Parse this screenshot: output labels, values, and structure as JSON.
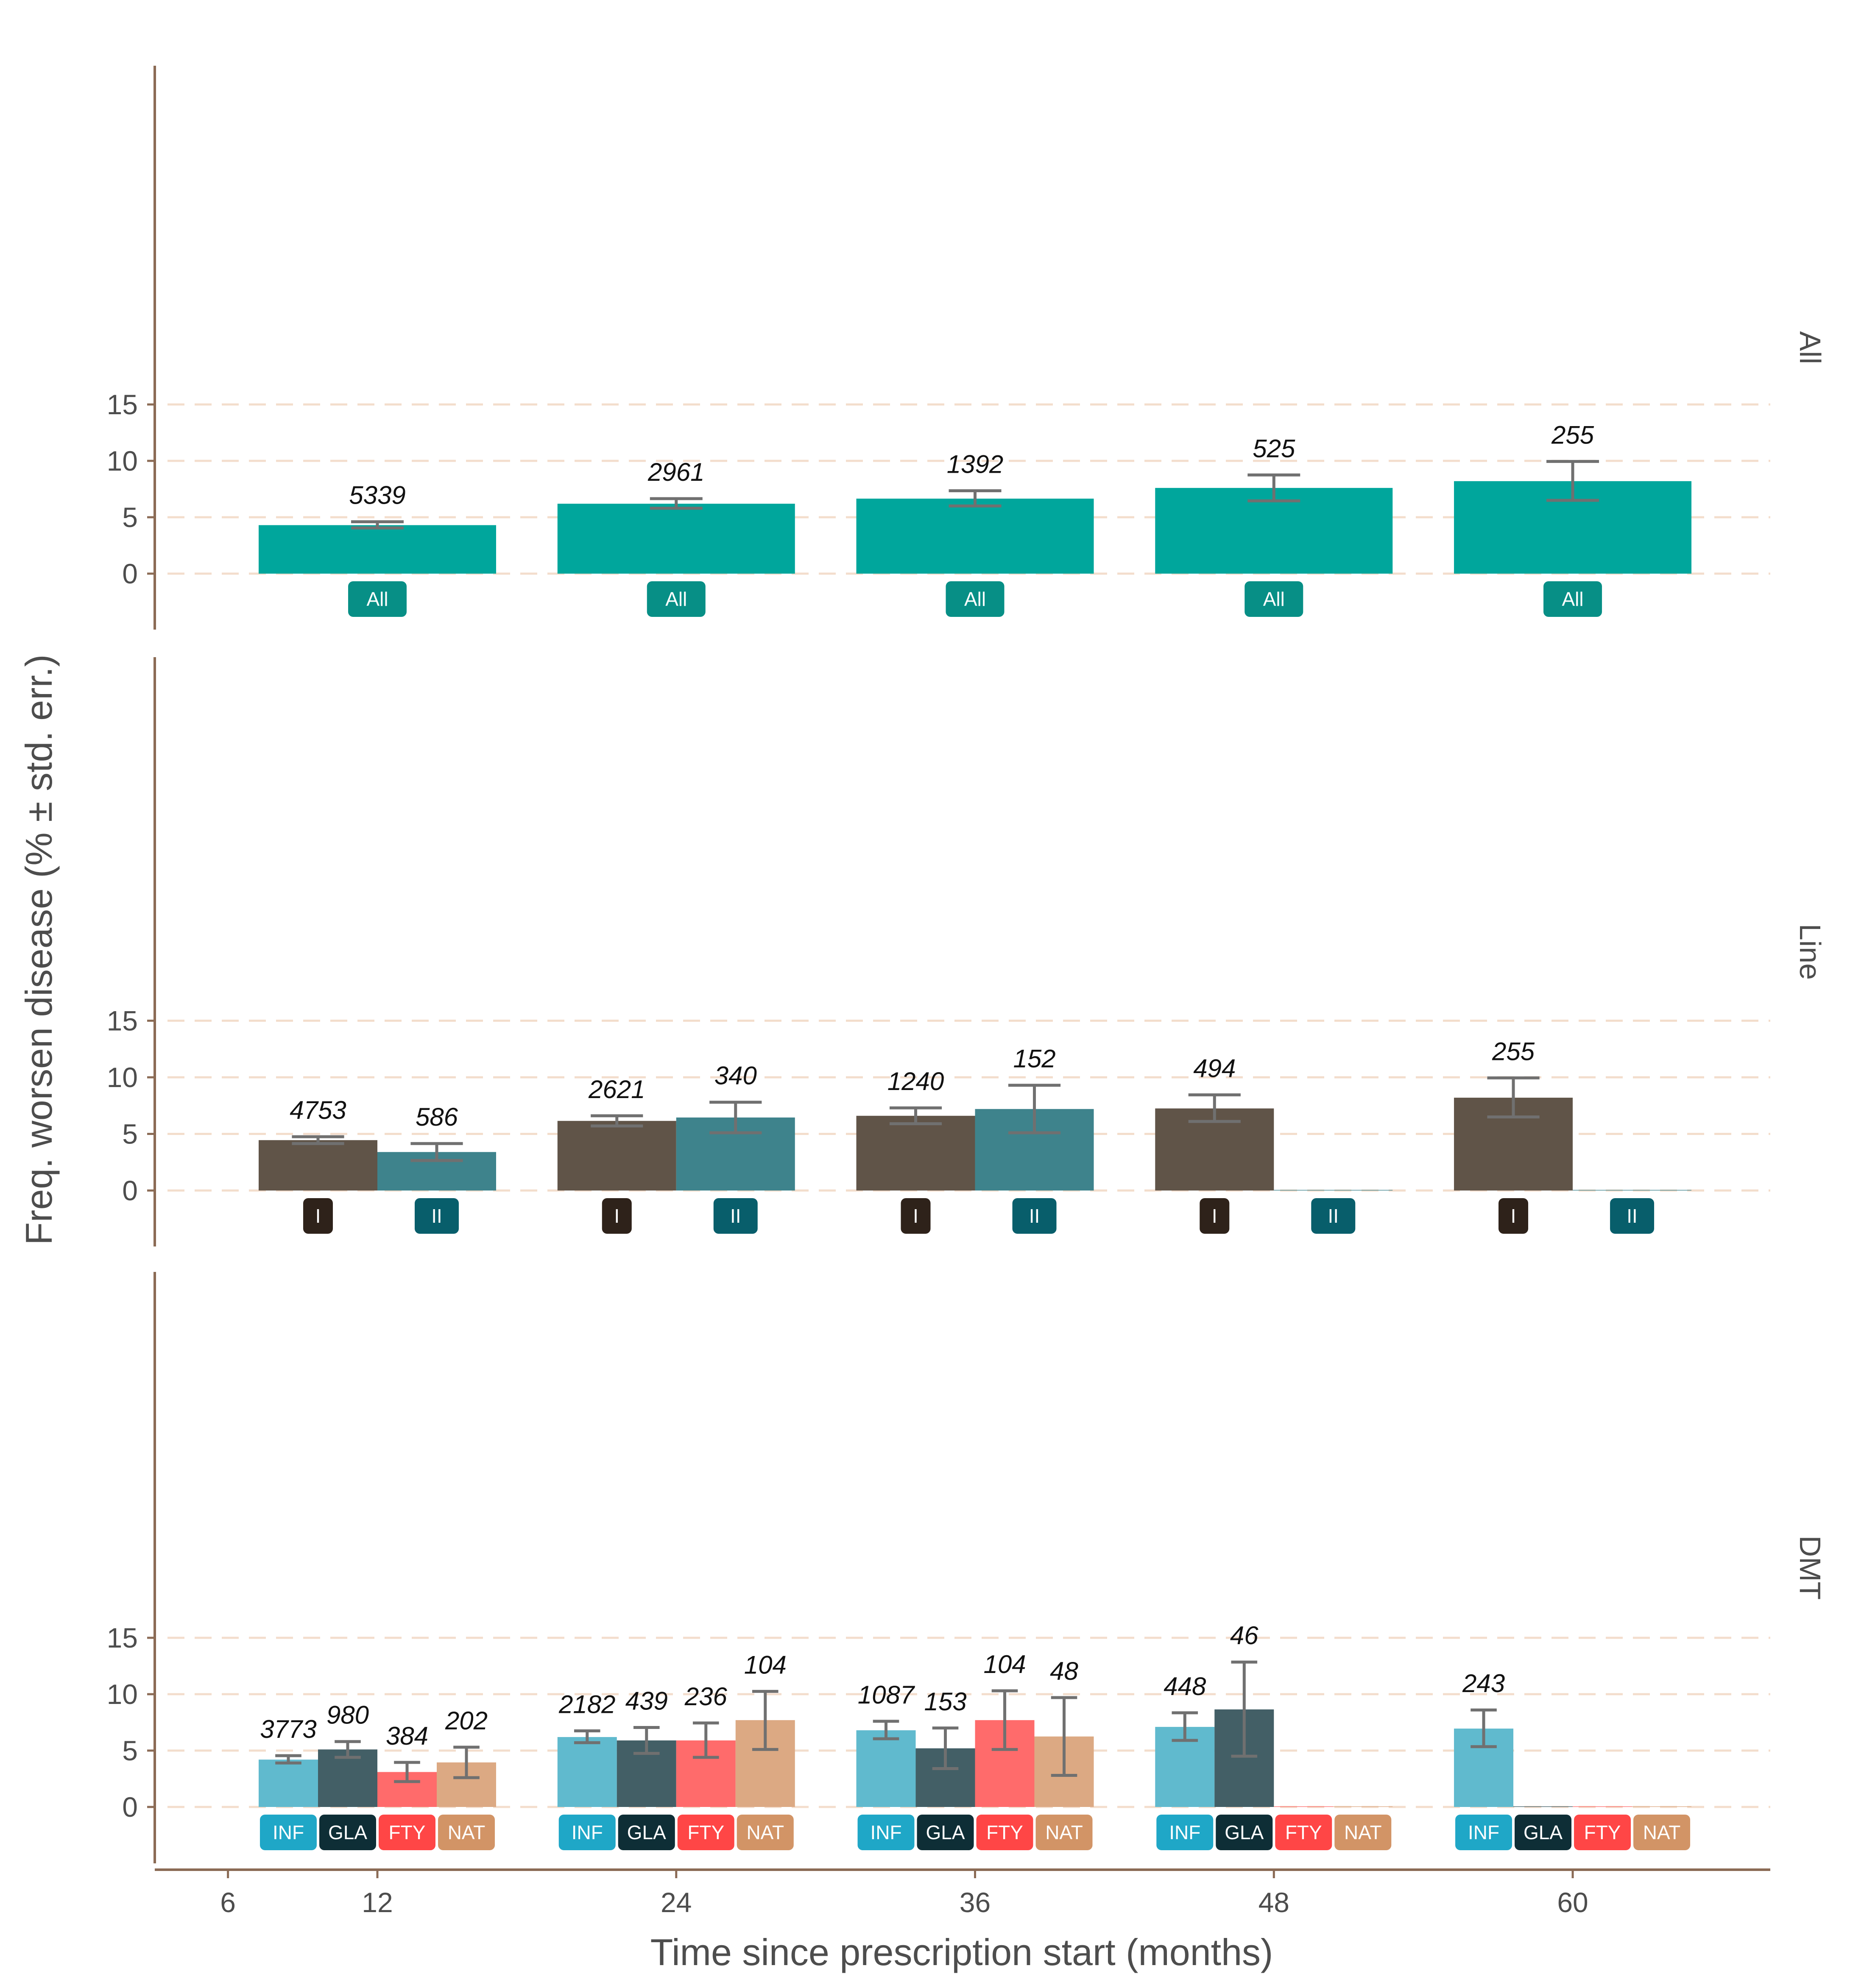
{
  "chart_data": {
    "type": "bar",
    "xlabel": "Time since prescription start (months)",
    "ylabel": "Freq. worsen disease (% ± std. err.)",
    "x_ticks": [
      6,
      12,
      24,
      36,
      48,
      60
    ],
    "x_categories": [
      12,
      24,
      36,
      48,
      60
    ],
    "ylim": [
      0,
      15
    ],
    "y_ticks": [
      0,
      5,
      10,
      15
    ],
    "grid": "horizontal dashed",
    "panels": [
      {
        "strip": "All",
        "series": [
          {
            "tag": "All",
            "color": "#00A69C",
            "tag_color": "#078F86",
            "values": [
              4.3,
              6.2,
              6.65,
              7.6,
              8.2
            ],
            "err_low": [
              4.05,
              5.8,
              6.0,
              6.45,
              6.5
            ],
            "err_high": [
              4.6,
              6.65,
              7.35,
              8.75,
              9.95
            ],
            "n": [
              "5339",
              "2961",
              "1392",
              "525",
              "255"
            ]
          }
        ]
      },
      {
        "strip": "Line",
        "series": [
          {
            "tag": "I",
            "color": "#605448",
            "tag_color": "#2E221A",
            "values": [
              4.45,
              6.15,
              6.6,
              7.25,
              8.2
            ],
            "err_low": [
              4.15,
              5.7,
              5.9,
              6.1,
              6.5
            ],
            "err_high": [
              4.75,
              6.6,
              7.3,
              8.45,
              9.95
            ],
            "n": [
              "4753",
              "2621",
              "1240",
              "494",
              "255"
            ]
          },
          {
            "tag": "II",
            "color": "#3E838C",
            "tag_color": "#085E6B",
            "values": [
              3.4,
              6.45,
              7.2,
              0.05,
              0.05
            ],
            "err_low": [
              2.65,
              5.1,
              5.1,
              null,
              null
            ],
            "err_high": [
              4.15,
              7.8,
              9.3,
              null,
              null
            ],
            "n": [
              "586",
              "340",
              "152",
              "",
              ""
            ]
          }
        ]
      },
      {
        "strip": "DMT",
        "series": [
          {
            "tag": "INF",
            "color": "#60BACE",
            "tag_color": "#1FA7C7",
            "values": [
              4.2,
              6.2,
              6.8,
              7.1,
              6.95
            ],
            "err_low": [
              3.9,
              5.7,
              6.05,
              5.9,
              5.35
            ],
            "err_high": [
              4.55,
              6.75,
              7.6,
              8.35,
              8.6
            ],
            "n": [
              "3773",
              "2182",
              "1087",
              "448",
              "243"
            ]
          },
          {
            "tag": "GLA",
            "color": "#435F66",
            "tag_color": "#0E2E36",
            "values": [
              5.1,
              5.9,
              5.2,
              8.65,
              0.05
            ],
            "err_low": [
              4.4,
              4.75,
              3.4,
              4.5,
              null
            ],
            "err_high": [
              5.8,
              7.05,
              7.0,
              12.85,
              null
            ],
            "n": [
              "980",
              "439",
              "153",
              "46",
              ""
            ]
          },
          {
            "tag": "FTY",
            "color": "#FF6B6B",
            "tag_color": "#FF4646",
            "values": [
              3.1,
              5.9,
              7.7,
              0.05,
              0.05
            ],
            "err_low": [
              2.25,
              4.4,
              5.1,
              null,
              null
            ],
            "err_high": [
              3.95,
              7.45,
              10.3,
              null,
              null
            ],
            "n": [
              "384",
              "236",
              "104",
              "",
              ""
            ]
          },
          {
            "tag": "NAT",
            "color": "#DCA983",
            "tag_color": "#D29466",
            "values": [
              3.95,
              7.7,
              6.25,
              0.05,
              0.05
            ],
            "err_low": [
              2.6,
              5.1,
              2.8,
              null,
              null
            ],
            "err_high": [
              5.3,
              10.25,
              9.7,
              null,
              null
            ],
            "n": [
              "202",
              "104",
              "48",
              "",
              ""
            ]
          }
        ]
      }
    ],
    "colors": {
      "axis": "#8B6B55",
      "grid": "#F3DDCC",
      "errorbar": "#707070",
      "text": "#4d4d4d"
    }
  }
}
